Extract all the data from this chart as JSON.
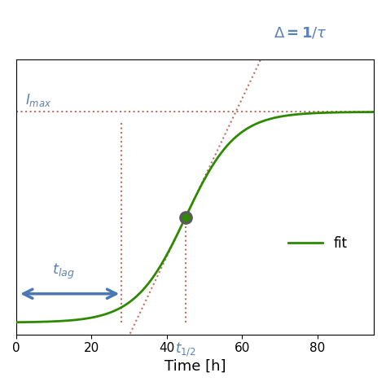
{
  "xlabel": "Time [h]",
  "xlim": [
    0,
    95
  ],
  "ylim": [
    -0.05,
    1.1
  ],
  "xticks": [
    0,
    20,
    40,
    60,
    80
  ],
  "sigmoid_k": 0.15,
  "sigmoid_t0": 45,
  "t_half": 45,
  "t_lag": 28,
  "fit_color": "#2d8a00",
  "dot_color_outer": "#5a5a5a",
  "dot_color_inner": "#2d8a00",
  "annotation_color": "#5a82b4",
  "dashed_color": "#c07060",
  "background_color": "#ffffff",
  "legend_label": "fit",
  "figsize": [
    4.74,
    4.74
  ],
  "dpi": 100
}
